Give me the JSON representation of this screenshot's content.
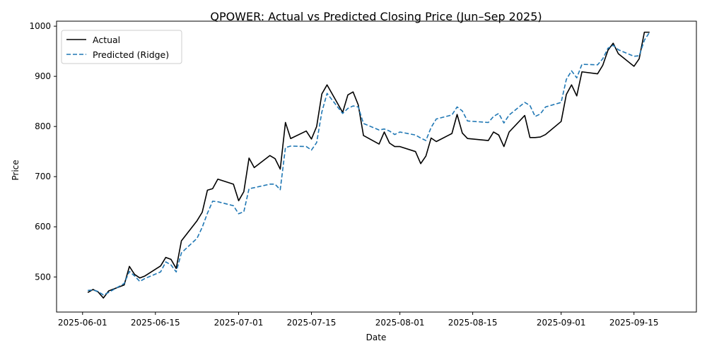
{
  "chart_data": {
    "type": "line",
    "title": "QPOWER: Actual vs Predicted Closing Price (Jun–Sep 2025)",
    "xlabel": "Date",
    "ylabel": "Price",
    "xlim": [
      "2025-05-27",
      "2025-09-27"
    ],
    "ylim": [
      430,
      1010
    ],
    "x_ticks": [
      "2025-06-01",
      "2025-06-15",
      "2025-07-01",
      "2025-07-15",
      "2025-08-01",
      "2025-08-15",
      "2025-09-01",
      "2025-09-15"
    ],
    "y_ticks": [
      500,
      600,
      700,
      800,
      900,
      1000
    ],
    "grid": false,
    "legend": "top-left",
    "series": [
      {
        "name": "Actual",
        "color": "#000000",
        "style": "solid",
        "points": [
          [
            "2025-06-02",
            469
          ],
          [
            "2025-06-03",
            475
          ],
          [
            "2025-06-04",
            470
          ],
          [
            "2025-06-05",
            458
          ],
          [
            "2025-06-06",
            472
          ],
          [
            "2025-06-09",
            484
          ],
          [
            "2025-06-10",
            521
          ],
          [
            "2025-06-11",
            505
          ],
          [
            "2025-06-12",
            498
          ],
          [
            "2025-06-13",
            502
          ],
          [
            "2025-06-16",
            522
          ],
          [
            "2025-06-17",
            539
          ],
          [
            "2025-06-18",
            535
          ],
          [
            "2025-06-19",
            517
          ],
          [
            "2025-06-20",
            572
          ],
          [
            "2025-06-23",
            612
          ],
          [
            "2025-06-24",
            629
          ],
          [
            "2025-06-25",
            673
          ],
          [
            "2025-06-26",
            676
          ],
          [
            "2025-06-27",
            695
          ],
          [
            "2025-06-30",
            685
          ],
          [
            "2025-07-01",
            652
          ],
          [
            "2025-07-02",
            670
          ],
          [
            "2025-07-03",
            737
          ],
          [
            "2025-07-04",
            718
          ],
          [
            "2025-07-07",
            742
          ],
          [
            "2025-07-08",
            736
          ],
          [
            "2025-07-09",
            715
          ],
          [
            "2025-07-10",
            808
          ],
          [
            "2025-07-11",
            776
          ],
          [
            "2025-07-14",
            791
          ],
          [
            "2025-07-15",
            775
          ],
          [
            "2025-07-16",
            800
          ],
          [
            "2025-07-17",
            865
          ],
          [
            "2025-07-18",
            883
          ],
          [
            "2025-07-21",
            828
          ],
          [
            "2025-07-22",
            863
          ],
          [
            "2025-07-23",
            869
          ],
          [
            "2025-07-24",
            843
          ],
          [
            "2025-07-25",
            782
          ],
          [
            "2025-07-28",
            765
          ],
          [
            "2025-07-29",
            789
          ],
          [
            "2025-07-30",
            767
          ],
          [
            "2025-07-31",
            760
          ],
          [
            "2025-08-01",
            760
          ],
          [
            "2025-08-04",
            750
          ],
          [
            "2025-08-05",
            726
          ],
          [
            "2025-08-06",
            741
          ],
          [
            "2025-08-07",
            777
          ],
          [
            "2025-08-08",
            770
          ],
          [
            "2025-08-11",
            786
          ],
          [
            "2025-08-12",
            824
          ],
          [
            "2025-08-13",
            787
          ],
          [
            "2025-08-14",
            776
          ],
          [
            "2025-08-18",
            772
          ],
          [
            "2025-08-19",
            789
          ],
          [
            "2025-08-20",
            783
          ],
          [
            "2025-08-21",
            760
          ],
          [
            "2025-08-22",
            789
          ],
          [
            "2025-08-25",
            822
          ],
          [
            "2025-08-26",
            778
          ],
          [
            "2025-08-27",
            778
          ],
          [
            "2025-08-28",
            779
          ],
          [
            "2025-08-29",
            784
          ],
          [
            "2025-09-01",
            810
          ],
          [
            "2025-09-02",
            864
          ],
          [
            "2025-09-03",
            883
          ],
          [
            "2025-09-04",
            861
          ],
          [
            "2025-09-05",
            909
          ],
          [
            "2025-09-08",
            905
          ],
          [
            "2025-09-09",
            922
          ],
          [
            "2025-09-10",
            952
          ],
          [
            "2025-09-11",
            966
          ],
          [
            "2025-09-12",
            945
          ],
          [
            "2025-09-15",
            920
          ],
          [
            "2025-09-16",
            935
          ],
          [
            "2025-09-17",
            988
          ],
          [
            "2025-09-18",
            988
          ]
        ]
      },
      {
        "name": "Predicted (Ridge)",
        "color": "#1f77b4",
        "style": "dashed",
        "points": [
          [
            "2025-06-02",
            473
          ],
          [
            "2025-06-03",
            474
          ],
          [
            "2025-06-04",
            471
          ],
          [
            "2025-06-05",
            464
          ],
          [
            "2025-06-06",
            469
          ],
          [
            "2025-06-09",
            487
          ],
          [
            "2025-06-10",
            511
          ],
          [
            "2025-06-11",
            502
          ],
          [
            "2025-06-12",
            491
          ],
          [
            "2025-06-13",
            497
          ],
          [
            "2025-06-16",
            510
          ],
          [
            "2025-06-17",
            530
          ],
          [
            "2025-06-18",
            524
          ],
          [
            "2025-06-19",
            510
          ],
          [
            "2025-06-20",
            548
          ],
          [
            "2025-06-23",
            577
          ],
          [
            "2025-06-24",
            599
          ],
          [
            "2025-06-25",
            627
          ],
          [
            "2025-06-26",
            651
          ],
          [
            "2025-06-27",
            650
          ],
          [
            "2025-06-30",
            642
          ],
          [
            "2025-07-01",
            626
          ],
          [
            "2025-07-02",
            630
          ],
          [
            "2025-07-03",
            676
          ],
          [
            "2025-07-04",
            678
          ],
          [
            "2025-07-07",
            685
          ],
          [
            "2025-07-08",
            685
          ],
          [
            "2025-07-09",
            674
          ],
          [
            "2025-07-10",
            758
          ],
          [
            "2025-07-11",
            761
          ],
          [
            "2025-07-14",
            760
          ],
          [
            "2025-07-15",
            753
          ],
          [
            "2025-07-16",
            768
          ],
          [
            "2025-07-17",
            829
          ],
          [
            "2025-07-18",
            866
          ],
          [
            "2025-07-21",
            826
          ],
          [
            "2025-07-22",
            836
          ],
          [
            "2025-07-23",
            841
          ],
          [
            "2025-07-24",
            839
          ],
          [
            "2025-07-25",
            806
          ],
          [
            "2025-07-28",
            793
          ],
          [
            "2025-07-29",
            795
          ],
          [
            "2025-07-30",
            791
          ],
          [
            "2025-07-31",
            784
          ],
          [
            "2025-08-01",
            789
          ],
          [
            "2025-08-04",
            783
          ],
          [
            "2025-08-05",
            777
          ],
          [
            "2025-08-06",
            772
          ],
          [
            "2025-08-07",
            798
          ],
          [
            "2025-08-08",
            815
          ],
          [
            "2025-08-11",
            823
          ],
          [
            "2025-08-12",
            839
          ],
          [
            "2025-08-13",
            831
          ],
          [
            "2025-08-14",
            811
          ],
          [
            "2025-08-18",
            808
          ],
          [
            "2025-08-19",
            820
          ],
          [
            "2025-08-20",
            826
          ],
          [
            "2025-08-21",
            807
          ],
          [
            "2025-08-22",
            823
          ],
          [
            "2025-08-25",
            848
          ],
          [
            "2025-08-26",
            842
          ],
          [
            "2025-08-27",
            820
          ],
          [
            "2025-08-28",
            825
          ],
          [
            "2025-08-29",
            839
          ],
          [
            "2025-09-01",
            848
          ],
          [
            "2025-09-02",
            894
          ],
          [
            "2025-09-03",
            911
          ],
          [
            "2025-09-04",
            897
          ],
          [
            "2025-09-05",
            924
          ],
          [
            "2025-09-08",
            923
          ],
          [
            "2025-09-09",
            935
          ],
          [
            "2025-09-10",
            956
          ],
          [
            "2025-09-11",
            962
          ],
          [
            "2025-09-12",
            953
          ],
          [
            "2025-09-15",
            940
          ],
          [
            "2025-09-16",
            941
          ],
          [
            "2025-09-17",
            972
          ],
          [
            "2025-09-18",
            988
          ]
        ]
      }
    ]
  }
}
